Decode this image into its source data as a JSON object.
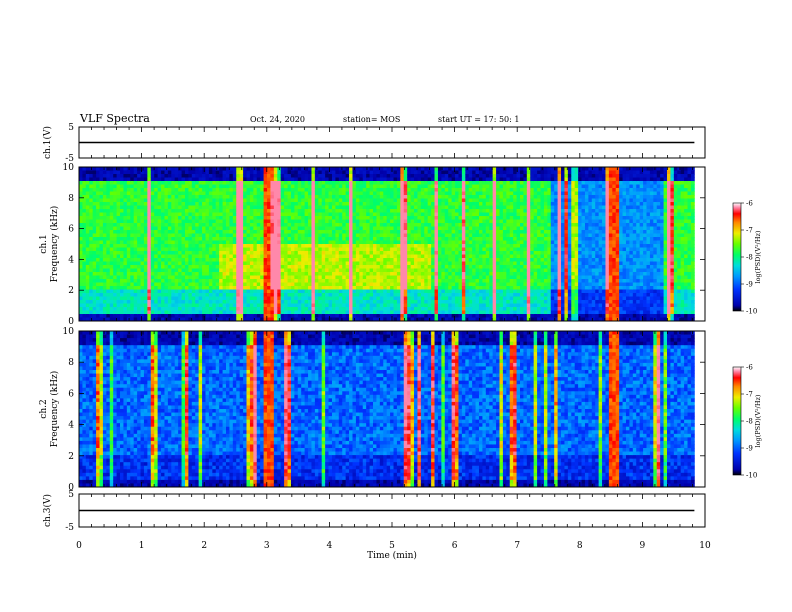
{
  "header": {
    "title": "VLF Spectra",
    "date": "Oct. 24, 2020",
    "station": "station= MOS",
    "start_ut": "start UT =   17: 50: 1"
  },
  "chart_data": [
    {
      "type": "line",
      "name_label": "ch.1(V)",
      "ylabel": "ch.1(V)",
      "ylim": [
        -5,
        5
      ],
      "yticks": [
        "5",
        "-5"
      ],
      "x": [
        0,
        9.83
      ],
      "values": [
        0,
        0
      ],
      "color": "#000000"
    },
    {
      "type": "heatmap",
      "ylabel_line1": "ch.1",
      "ylabel_line2": "Frequency (kHz)",
      "ylim": [
        0,
        10
      ],
      "yticks": [
        "0",
        "2",
        "4",
        "6",
        "8",
        "10"
      ],
      "colorbar": {
        "label": "log(PSD)(V²/Hz)",
        "range": [
          -10,
          -6
        ],
        "ticks": [
          "-6",
          "-7",
          "-8",
          "-9",
          "-10"
        ]
      }
    },
    {
      "type": "heatmap",
      "ylabel_line1": "ch.2",
      "ylabel_line2": "Frequency (kHz)",
      "ylim": [
        0,
        10
      ],
      "yticks": [
        "0",
        "2",
        "4",
        "6",
        "8",
        "10"
      ],
      "colorbar": {
        "label": "log(PSD)(V²/Hz)",
        "range": [
          -10,
          -6
        ],
        "ticks": [
          "-6",
          "-7",
          "-8",
          "-9",
          "-10"
        ]
      }
    },
    {
      "type": "line",
      "ylabel": "ch.3(V)",
      "ylim": [
        -5,
        5
      ],
      "yticks": [
        "5",
        "-5"
      ],
      "x": [
        0,
        9.83
      ],
      "values": [
        0,
        0
      ],
      "color": "#000000"
    }
  ],
  "xaxis": {
    "label": "Time (min)",
    "xlim": [
      0,
      10
    ],
    "ticks": [
      "0",
      "1",
      "2",
      "3",
      "4",
      "5",
      "6",
      "7",
      "8",
      "9",
      "10"
    ]
  }
}
